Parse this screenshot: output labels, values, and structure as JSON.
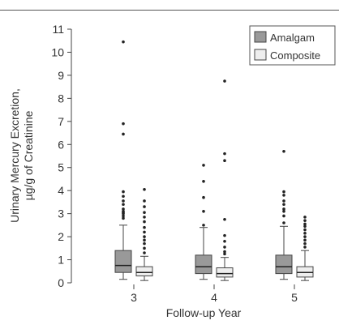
{
  "chart_data": {
    "type": "boxplot",
    "title": "",
    "ylabel_line1": "Urinary Mercury Excretion,",
    "ylabel_line2": "µg/g of Creatinine",
    "xlabel": "Follow-up Year",
    "categories": [
      "3",
      "4",
      "5"
    ],
    "ylim": [
      0,
      11
    ],
    "yticks": [
      "0",
      "1",
      "2",
      "3",
      "4",
      "5",
      "6",
      "7",
      "8",
      "9",
      "10",
      "11"
    ],
    "grid": false,
    "legend_position": "top-right",
    "series": [
      {
        "name": "Amalgam",
        "color": "#999999",
        "stats": [
          {
            "whisker_low": 0.15,
            "q1": 0.45,
            "median": 0.75,
            "q3": 1.4,
            "whisker_high": 2.5,
            "outliers": [
              2.8,
              2.9,
              3.0,
              3.05,
              3.1,
              3.2,
              3.4,
              3.55,
              3.75,
              3.95,
              6.45,
              6.9,
              10.45
            ]
          },
          {
            "whisker_low": 0.15,
            "q1": 0.4,
            "median": 0.7,
            "q3": 1.2,
            "whisker_high": 2.4,
            "outliers": [
              2.5,
              3.1,
              3.7,
              4.4,
              5.1
            ]
          },
          {
            "whisker_low": 0.15,
            "q1": 0.4,
            "median": 0.7,
            "q3": 1.2,
            "whisker_high": 2.45,
            "outliers": [
              2.6,
              2.9,
              3.1,
              3.2,
              3.4,
              3.55,
              3.8,
              3.95,
              5.7
            ]
          }
        ]
      },
      {
        "name": "Composite",
        "color": "#eeeeee",
        "stats": [
          {
            "whisker_low": 0.1,
            "q1": 0.3,
            "median": 0.45,
            "q3": 0.7,
            "whisker_high": 1.15,
            "outliers": [
              1.3,
              1.5,
              1.7,
              1.85,
              2.0,
              2.2,
              2.4,
              2.65,
              2.85,
              3.05,
              3.3,
              3.55,
              4.05
            ]
          },
          {
            "whisker_low": 0.1,
            "q1": 0.25,
            "median": 0.4,
            "q3": 0.65,
            "whisker_high": 1.1,
            "outliers": [
              1.25,
              1.35,
              1.55,
              1.8,
              2.05,
              2.75,
              5.3,
              5.6,
              8.75
            ]
          },
          {
            "whisker_low": 0.1,
            "q1": 0.25,
            "median": 0.45,
            "q3": 0.7,
            "whisker_high": 1.4,
            "outliers": [
              1.55,
              1.7,
              1.85,
              2.0,
              2.15,
              2.3,
              2.45,
              2.55,
              2.7,
              2.85
            ]
          }
        ]
      }
    ]
  }
}
